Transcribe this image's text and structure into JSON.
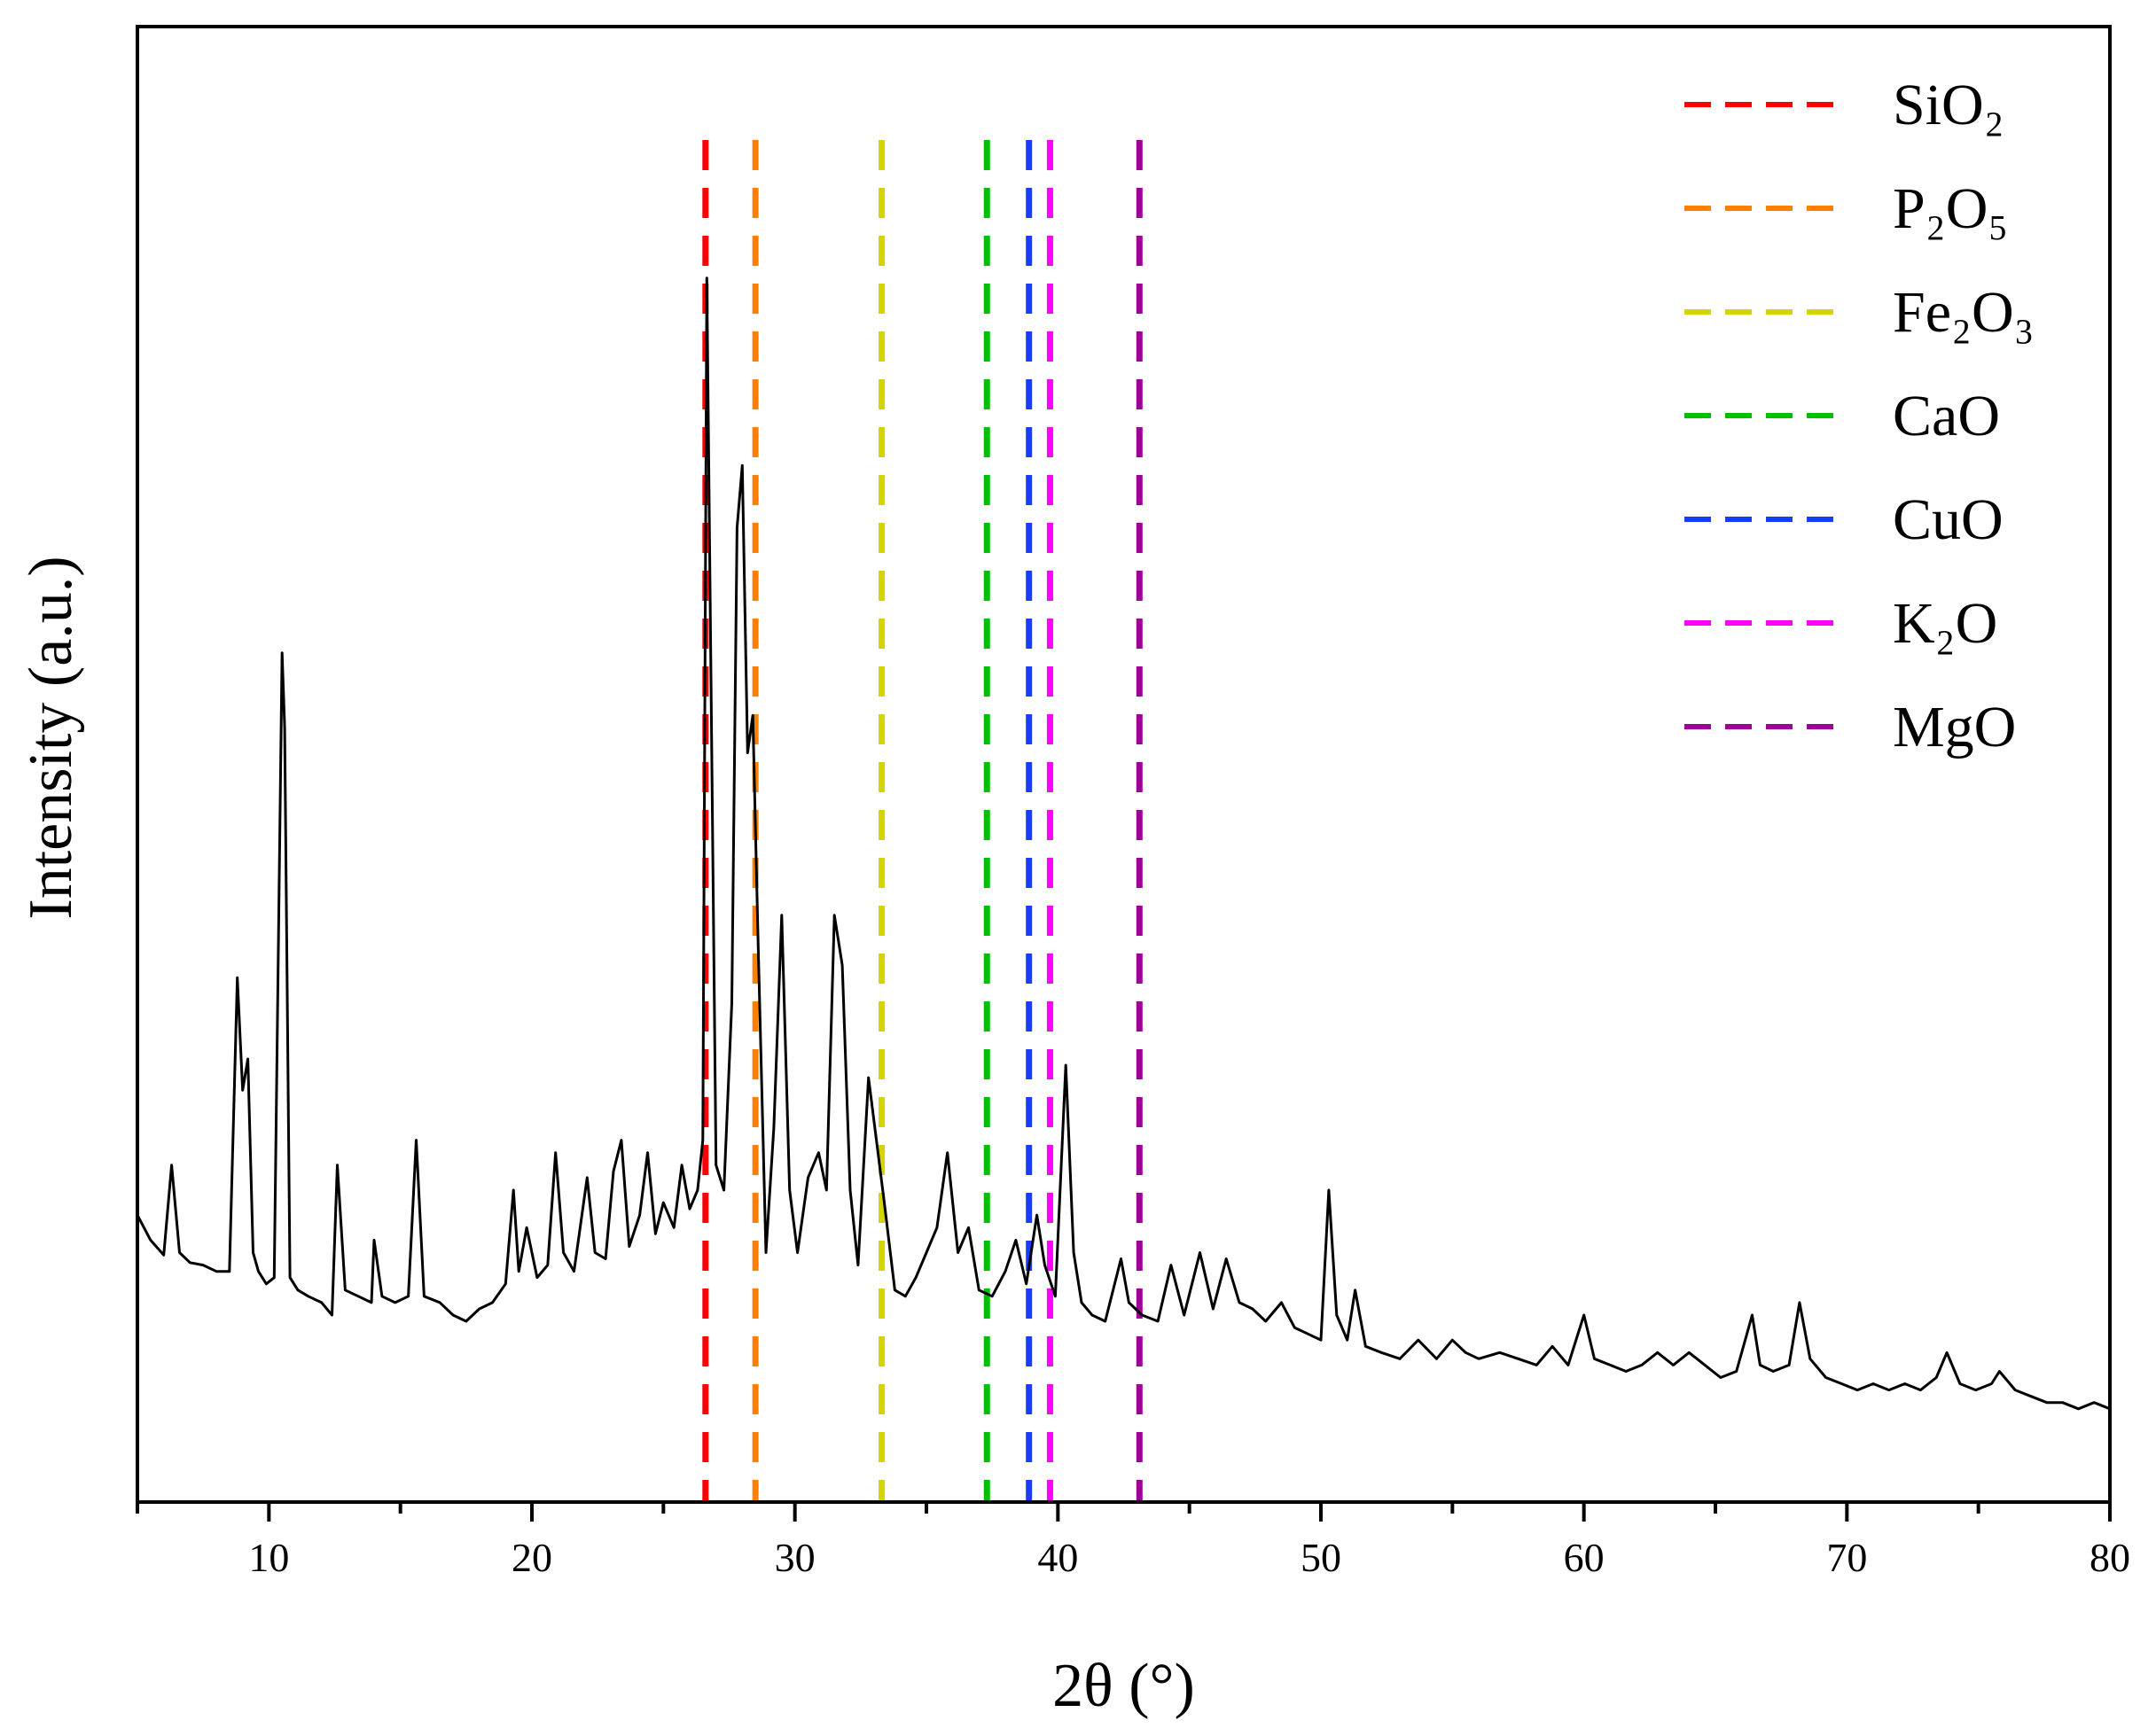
{
  "chart_data": {
    "type": "line",
    "title": "",
    "xlabel": "2θ (°)",
    "ylabel": "Intensity (a.u.)",
    "xlim": [
      5,
      80
    ],
    "ylim": [
      0,
      100
    ],
    "x_ticks": [
      10,
      20,
      30,
      40,
      50,
      60,
      70,
      80
    ],
    "x_tick_labels": [
      "10",
      "20",
      "30",
      "40",
      "50",
      "60",
      "70",
      "80"
    ],
    "y_ticks_shown": false,
    "grid": false,
    "legend": "top-right",
    "series": [
      {
        "type": "line",
        "color": "#000000",
        "x": [
          5.0,
          5.5,
          6.0,
          6.3,
          6.6,
          7.0,
          7.5,
          8.0,
          8.5,
          8.8,
          9.0,
          9.2,
          9.4,
          9.6,
          9.9,
          10.2,
          10.5,
          10.6,
          10.8,
          11.1,
          11.5,
          12.0,
          12.4,
          12.6,
          12.9,
          13.4,
          13.9,
          14.0,
          14.3,
          14.8,
          15.3,
          15.6,
          15.9,
          16.5,
          17.0,
          17.5,
          18.0,
          18.5,
          19.0,
          19.3,
          19.5,
          19.8,
          20.2,
          20.6,
          20.9,
          21.2,
          21.6,
          22.1,
          22.4,
          22.8,
          23.1,
          23.4,
          23.7,
          24.1,
          24.4,
          24.7,
          25.0,
          25.4,
          25.7,
          26.0,
          26.3,
          26.5,
          26.65,
          26.8,
          27.0,
          27.3,
          27.6,
          27.8,
          28.0,
          28.2,
          28.4,
          28.6,
          28.9,
          29.2,
          29.5,
          29.8,
          30.1,
          30.5,
          30.9,
          31.2,
          31.5,
          31.8,
          32.1,
          32.4,
          32.8,
          33.1,
          33.4,
          33.8,
          34.2,
          34.6,
          35.0,
          35.4,
          35.8,
          36.2,
          36.6,
          37.0,
          37.5,
          38.0,
          38.4,
          38.8,
          39.2,
          39.5,
          39.9,
          40.3,
          40.6,
          40.9,
          41.3,
          41.8,
          42.4,
          42.7,
          43.2,
          43.8,
          44.3,
          44.8,
          45.4,
          45.9,
          46.4,
          46.9,
          47.4,
          47.9,
          48.5,
          49.0,
          49.5,
          50.0,
          50.3,
          50.6,
          51.0,
          51.3,
          51.7,
          52.3,
          53.0,
          53.7,
          54.4,
          55.0,
          55.5,
          56.0,
          56.8,
          57.5,
          58.2,
          58.8,
          59.4,
          60.0,
          60.4,
          61.0,
          61.6,
          62.2,
          62.8,
          63.4,
          64.0,
          64.6,
          65.2,
          65.8,
          66.4,
          66.7,
          67.2,
          67.8,
          68.2,
          68.6,
          69.2,
          69.8,
          70.4,
          71.0,
          71.6,
          72.2,
          72.8,
          73.4,
          73.8,
          74.3,
          74.9,
          75.5,
          75.8,
          76.4,
          77.0,
          77.6,
          78.2,
          78.8,
          79.4,
          80.0
        ],
        "y": [
          18.0,
          16.0,
          14.8,
          22.0,
          15.0,
          14.2,
          14.0,
          13.5,
          13.5,
          37.0,
          28.0,
          30.5,
          15.0,
          13.5,
          12.5,
          13.0,
          63.0,
          57.0,
          13.0,
          12.0,
          11.5,
          11.0,
          10.0,
          22.0,
          12.0,
          11.5,
          11.0,
          16.0,
          11.5,
          11.0,
          11.5,
          24.0,
          11.5,
          11.0,
          10.0,
          9.5,
          10.5,
          11.0,
          12.5,
          20.0,
          13.5,
          17.0,
          13.0,
          14.0,
          23.0,
          15.0,
          13.5,
          21.0,
          15.0,
          14.5,
          21.5,
          24.0,
          15.5,
          18.0,
          23.0,
          16.5,
          19.0,
          17.0,
          22.0,
          18.5,
          20.0,
          24.0,
          93.0,
          63.0,
          22.0,
          20.0,
          35.0,
          73.0,
          78.0,
          55.0,
          58.0,
          40.0,
          15.0,
          25.0,
          42.0,
          20.0,
          15.0,
          21.0,
          23.0,
          20.0,
          42.0,
          38.0,
          20.0,
          14.0,
          29.0,
          24.0,
          19.0,
          12.0,
          11.5,
          13.0,
          15.0,
          17.0,
          23.0,
          15.0,
          17.0,
          12.0,
          11.5,
          13.5,
          16.0,
          12.5,
          18.0,
          14.0,
          11.5,
          30.0,
          15.0,
          11.0,
          10.0,
          9.5,
          14.5,
          11.0,
          10.0,
          9.5,
          14.0,
          10.0,
          15.0,
          10.5,
          14.5,
          11.0,
          10.5,
          9.5,
          11.0,
          9.0,
          8.5,
          8.0,
          20.0,
          10.0,
          8.0,
          12.0,
          7.5,
          7.0,
          6.5,
          8.0,
          6.5,
          8.0,
          7.0,
          6.5,
          7.0,
          6.5,
          6.0,
          7.5,
          6.0,
          10.0,
          6.5,
          6.0,
          5.5,
          6.0,
          7.0,
          6.0,
          7.0,
          6.0,
          5.0,
          5.5,
          10.0,
          6.0,
          5.5,
          6.0,
          11.0,
          6.5,
          5.0,
          4.5,
          4.0,
          4.5,
          4.0,
          4.5,
          4.0,
          5.0,
          7.0,
          4.5,
          4.0,
          4.5,
          5.5,
          4.0,
          3.5,
          3.0,
          3.0,
          2.5,
          3.0,
          2.5
        ]
      }
    ],
    "reference_lines": [
      {
        "name": "SiO₂",
        "x": 26.6,
        "color": "#ff0000"
      },
      {
        "name": "P₂O₅",
        "x": 28.5,
        "color": "#ff7f00"
      },
      {
        "name": "Fe₂O₃",
        "x": 33.3,
        "color": "#d4d400"
      },
      {
        "name": "CaO",
        "x": 37.3,
        "color": "#00c000"
      },
      {
        "name": "CuO",
        "x": 38.9,
        "color": "#1a3cff"
      },
      {
        "name": "K₂O",
        "x": 39.7,
        "color": "#ff00ff"
      },
      {
        "name": "MgO",
        "x": 43.1,
        "color": "#a0009a"
      }
    ]
  }
}
